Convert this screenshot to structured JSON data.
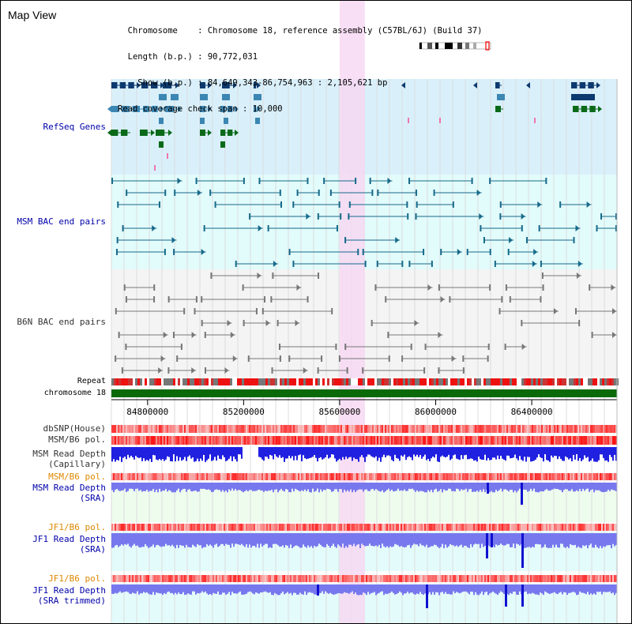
{
  "header": {
    "title": "Map View",
    "chromosome_label": "Chromosome",
    "chromosome_value": "Chromosome 18, reference assembly (C57BL/6J) (Build 37)",
    "length_label": "Length (b.p.)",
    "length_value": "90,772,031",
    "show_label": "Show (b.p.)",
    "show_value": "84,649,343-86,754,963 : 2,105,621 bp",
    "span_label": "Read coverage check span",
    "span_value": "10,000"
  },
  "tracks": {
    "refseq": "RefSeq Genes",
    "msm_bac": "MSM BAC end pairs",
    "b6n_bac": "B6N BAC end pairs",
    "repeat": "Repeat",
    "chromosome": "chromosome 18",
    "dbsnp": "dbSNP(House)",
    "msm_b6_pol": "MSM/B6 pol.",
    "msm_cap_1": "MSM Read Depth",
    "msm_cap_2": "(Capillary)",
    "msm_b6_pol_2": "MSM/B6 pol.",
    "msm_sra_1": "MSM Read Depth",
    "msm_sra_2": "(SRA)",
    "jf1_b6_pol": "JF1/B6 pol.",
    "jf1_sra_1": "JF1 Read Depth",
    "jf1_sra_2": "(SRA)",
    "jf1_b6_pol_2": "JF1/B6 pol.",
    "jf1_trim_1": "JF1 Read Depth",
    "jf1_trim_2": "(SRA trimmed)"
  },
  "axis": {
    "ticks": [
      84800000,
      85200000,
      85600000,
      86000000,
      86400000
    ]
  },
  "view": {
    "start": 84649343,
    "end": 86754963,
    "highlight_start": 85600000,
    "highlight_end": 85705000
  },
  "colors": {
    "refseq_bg": "#d9f0fb",
    "bac_bg": "#e2fbfb",
    "b6n_bg": "#f4f4f4",
    "gene_dark": "#0d3a6e",
    "gene_mid": "#3c86b3",
    "gene_green": "#0a6a1a",
    "msm_bac": "#176a8a",
    "b6n_bac": "#777777",
    "chromosome": "#0a6a0a",
    "depth_blue": "#2020e0",
    "depth_light": "#7878ee",
    "highlight": "#f7d7f3"
  }
}
